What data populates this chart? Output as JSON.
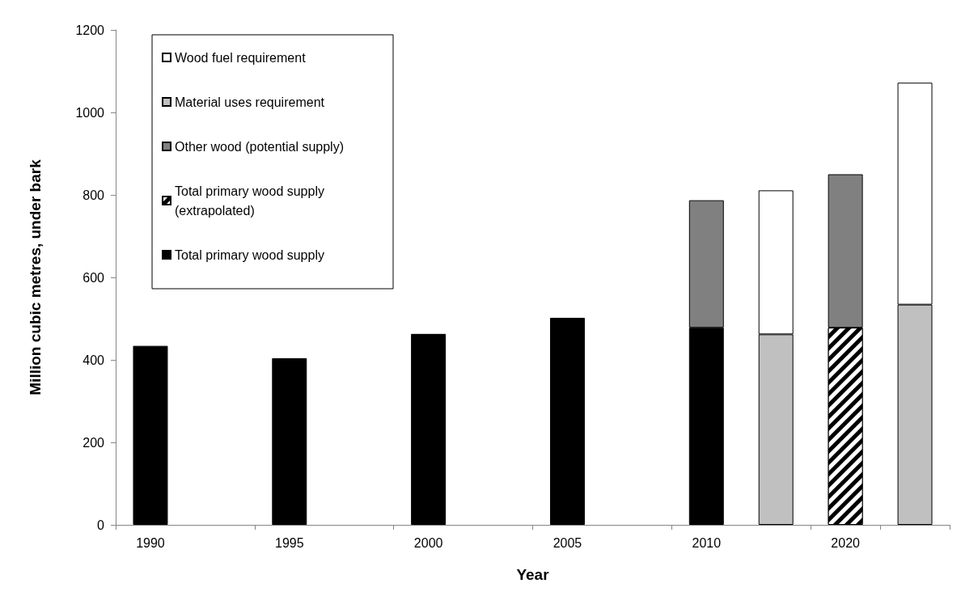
{
  "chart_data": {
    "type": "bar",
    "stacked": true,
    "xlabel": "Year",
    "ylabel": "Million cubic metres, under bark",
    "categories": [
      "1990",
      null,
      "1995",
      null,
      "2000",
      null,
      "2005",
      null,
      "2010",
      null,
      "2020",
      null
    ],
    "series": [
      {
        "name": "Total primary wood supply",
        "color": "#000000",
        "values": [
          434,
          null,
          404,
          null,
          463,
          null,
          502,
          null,
          478,
          null,
          null,
          null
        ]
      },
      {
        "name": "Total primary wood supply (extrapolated)",
        "color": "#000000",
        "values": [
          null,
          null,
          null,
          null,
          null,
          null,
          null,
          null,
          null,
          null,
          478,
          null
        ]
      },
      {
        "name": "Other wood (potential supply)",
        "color": "#808080",
        "values": [
          null,
          null,
          null,
          null,
          null,
          null,
          null,
          null,
          309,
          null,
          372,
          null
        ]
      },
      {
        "name": "Material uses requirement",
        "color": "#c0c0c0",
        "values": [
          null,
          null,
          null,
          null,
          null,
          null,
          null,
          null,
          null,
          462,
          null,
          534
        ]
      },
      {
        "name": "Wood fuel requirement",
        "color": "#ffffff",
        "values": [
          null,
          null,
          null,
          null,
          null,
          null,
          null,
          null,
          null,
          349,
          null,
          538
        ]
      }
    ],
    "ylim": [
      0,
      1200
    ],
    "yticks": [
      0,
      200,
      400,
      600,
      800,
      1000,
      1200
    ],
    "grid": false,
    "legend": "top left"
  }
}
